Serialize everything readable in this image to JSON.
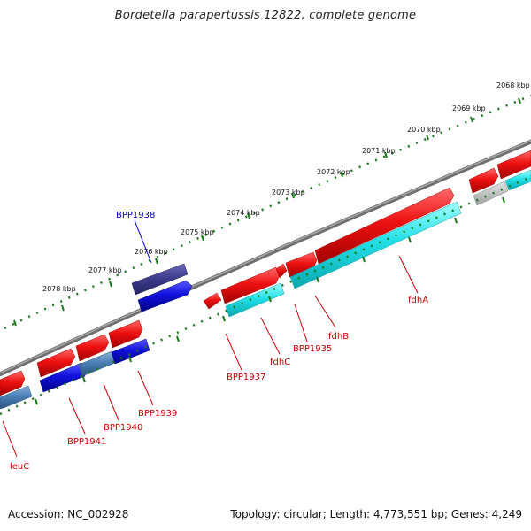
{
  "title": "Bordetella parapertussis 12822, complete genome",
  "footer": {
    "accession": "Accession: NC_002928",
    "summary": "Topology: circular; Length: 4,773,551 bp; Genes: 4,249"
  },
  "kbp_labels": [
    "2068 kbp",
    "2069 kbp",
    "2070 kbp",
    "2071 kbp",
    "2072 kbp",
    "2073 kbp",
    "2074 kbp",
    "2075 kbp",
    "2076 kbp",
    "2077 kbp",
    "2078 kbp"
  ],
  "gene_labels": {
    "bpp1938": "BPP1938",
    "fdha": "fdhA",
    "fdhb": "fdhB",
    "bpp1935": "BPP1935",
    "fdhc": "fdhC",
    "bpp1937": "BPP1937",
    "bpp1939": "BPP1939",
    "bpp1940": "BPP1940",
    "bpp1941": "BPP1941",
    "leuc": "leuC"
  },
  "colors": {
    "backbone": "#7a7a7a",
    "forward_gene": "#ee1111",
    "reverse_gene": "#1111dd",
    "cyan_track": "#22e0e8",
    "steelblue_track": "#4a7fb5",
    "highlight_gene": "#3b3a8a",
    "tick": "#1a7a1a",
    "label_red": "#cc0000",
    "label_blue": "#0000cc"
  }
}
